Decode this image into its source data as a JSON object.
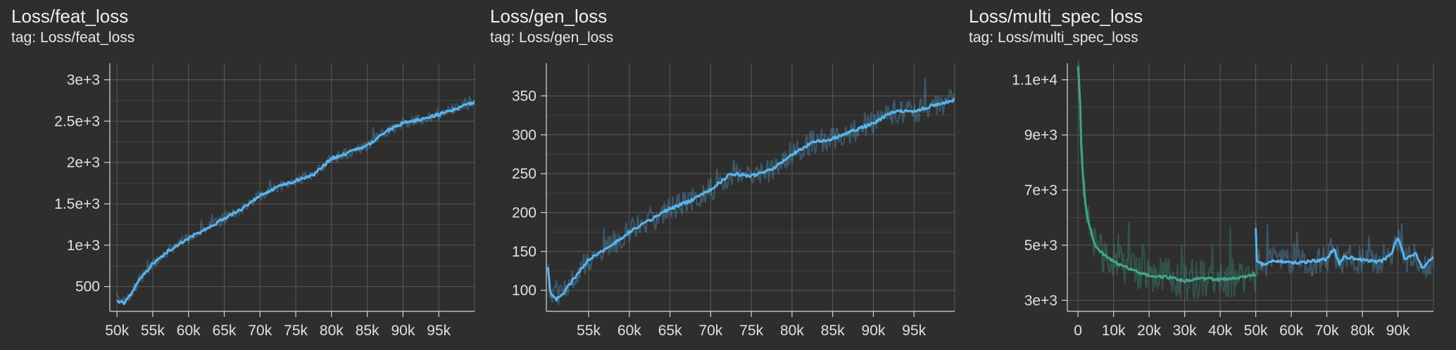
{
  "colors": {
    "background": "#2e2e2e",
    "grid": "#5a5a5a",
    "axis": "#d8d8d8",
    "run_blue": "#5ab4ec",
    "run_green": "#3fa58a"
  },
  "tag_prefix": "tag:",
  "chart_data": [
    {
      "type": "line",
      "title": "Loss/feat_loss",
      "tag": "Loss/feat_loss",
      "xlabel": "",
      "ylabel": "",
      "grid": true,
      "xlim": [
        49000,
        100000
      ],
      "ylim": [
        200,
        3200
      ],
      "x_ticks": [
        50000,
        55000,
        60000,
        65000,
        70000,
        75000,
        80000,
        85000,
        90000,
        95000
      ],
      "x_tick_labels": [
        "50k",
        "55k",
        "60k",
        "65k",
        "70k",
        "75k",
        "80k",
        "85k",
        "90k",
        "95k"
      ],
      "y_ticks": [
        500,
        1000,
        1500,
        2000,
        2500,
        3000
      ],
      "y_tick_labels": [
        "500",
        "1e+3",
        "1.5e+3",
        "2e+3",
        "2.5e+3",
        "3e+3"
      ],
      "series": [
        {
          "color": "#5ab4ec",
          "noise": 0.04,
          "x": [
            50000,
            51000,
            52000,
            53000,
            55000,
            57500,
            60000,
            62500,
            65000,
            67500,
            70000,
            72500,
            75000,
            77500,
            80000,
            82500,
            85000,
            87500,
            90000,
            92500,
            95000,
            97500,
            100000
          ],
          "y": [
            330,
            300,
            420,
            560,
            780,
            950,
            1080,
            1200,
            1320,
            1440,
            1600,
            1700,
            1780,
            1850,
            2050,
            2120,
            2200,
            2370,
            2480,
            2520,
            2580,
            2650,
            2730
          ]
        }
      ]
    },
    {
      "type": "line",
      "title": "Loss/gen_loss",
      "tag": "Loss/gen_loss",
      "xlabel": "",
      "ylabel": "",
      "grid": true,
      "xlim": [
        49800,
        100000
      ],
      "ylim": [
        73,
        392
      ],
      "x_ticks": [
        55000,
        60000,
        65000,
        70000,
        75000,
        80000,
        85000,
        90000,
        95000
      ],
      "x_tick_labels": [
        "55k",
        "60k",
        "65k",
        "70k",
        "75k",
        "80k",
        "85k",
        "90k",
        "95k"
      ],
      "y_ticks": [
        100,
        150,
        200,
        250,
        300,
        350
      ],
      "y_tick_labels": [
        "100",
        "150",
        "200",
        "250",
        "300",
        "350"
      ],
      "series": [
        {
          "color": "#5ab4ec",
          "noise": 0.09,
          "x": [
            50000,
            50300,
            51000,
            52000,
            53000,
            55000,
            57500,
            60000,
            62500,
            65000,
            67500,
            70000,
            72500,
            75000,
            77500,
            80000,
            82500,
            85000,
            87500,
            90000,
            92500,
            95000,
            97500,
            100000
          ],
          "y": [
            128,
            95,
            88,
            98,
            112,
            140,
            155,
            175,
            190,
            205,
            215,
            230,
            250,
            247,
            255,
            275,
            290,
            295,
            305,
            315,
            330,
            330,
            338,
            345
          ]
        }
      ]
    },
    {
      "type": "line",
      "title": "Loss/multi_spec_loss",
      "tag": "Loss/multi_spec_loss",
      "xlabel": "",
      "ylabel": "",
      "grid": true,
      "xlim": [
        -3000,
        100000
      ],
      "ylim": [
        2600,
        11600
      ],
      "x_ticks": [
        0,
        10000,
        20000,
        30000,
        40000,
        50000,
        60000,
        70000,
        80000,
        90000
      ],
      "x_tick_labels": [
        "0",
        "10k",
        "20k",
        "30k",
        "40k",
        "50k",
        "60k",
        "70k",
        "80k",
        "90k"
      ],
      "y_ticks": [
        3000,
        5000,
        7000,
        9000,
        11000
      ],
      "y_tick_labels": [
        "3e+3",
        "5e+3",
        "7e+3",
        "9e+3",
        "1.1e+4"
      ],
      "series": [
        {
          "color": "#3fa58a",
          "noise": 0.14,
          "x": [
            0,
            500,
            1000,
            2000,
            3000,
            5000,
            8000,
            10000,
            15000,
            20000,
            25000,
            30000,
            35000,
            40000,
            45000,
            48000,
            50000
          ],
          "y": [
            11500,
            10500,
            8200,
            6500,
            5800,
            4900,
            4600,
            4400,
            4100,
            3900,
            3850,
            3700,
            3800,
            3750,
            3800,
            3900,
            3950
          ]
        },
        {
          "color": "#5ab4ec",
          "noise": 0.11,
          "x": [
            50000,
            50300,
            52000,
            55000,
            60000,
            65000,
            70000,
            72000,
            73500,
            75000,
            80000,
            85000,
            88000,
            90000,
            92000,
            95000,
            97000,
            100000
          ],
          "y": [
            5600,
            4400,
            4300,
            4450,
            4350,
            4400,
            4500,
            4900,
            4300,
            4600,
            4450,
            4400,
            4650,
            5300,
            4500,
            4700,
            4150,
            4600
          ]
        }
      ]
    }
  ]
}
